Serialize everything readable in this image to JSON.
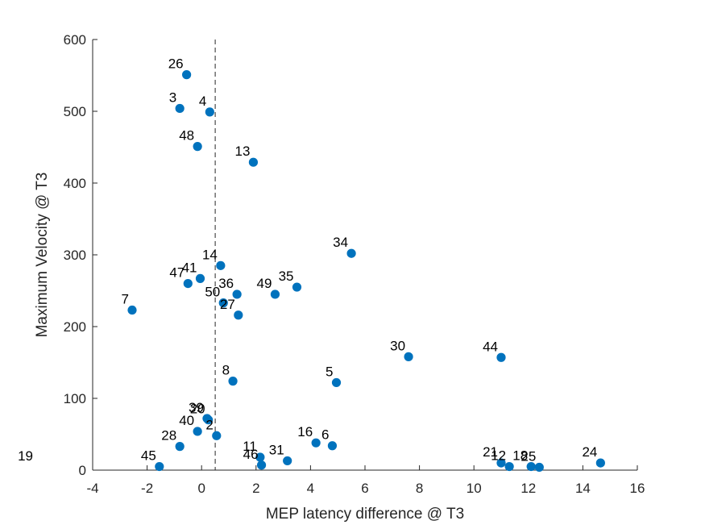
{
  "chart_data": {
    "type": "scatter",
    "xlabel": "MEP latency difference @ T3",
    "ylabel": "Maximum Velocity @ T3",
    "xlim": [
      -4,
      16
    ],
    "ylim": [
      0,
      600
    ],
    "xticks": [
      -4,
      -2,
      0,
      2,
      4,
      6,
      8,
      10,
      12,
      14,
      16
    ],
    "yticks": [
      0,
      100,
      200,
      300,
      400,
      500,
      600
    ],
    "reference_line_x": 0.5,
    "grid": false,
    "marker_color": "#0072BD",
    "points": [
      {
        "label": "26",
        "x": -0.55,
        "y": 551
      },
      {
        "label": "3",
        "x": -0.8,
        "y": 504
      },
      {
        "label": "4",
        "x": 0.3,
        "y": 499
      },
      {
        "label": "48",
        "x": -0.15,
        "y": 451
      },
      {
        "label": "13",
        "x": 1.9,
        "y": 429
      },
      {
        "label": "34",
        "x": 5.5,
        "y": 302
      },
      {
        "label": "14",
        "x": 0.7,
        "y": 285
      },
      {
        "label": "41",
        "x": -0.05,
        "y": 267
      },
      {
        "label": "47",
        "x": -0.5,
        "y": 260
      },
      {
        "label": "35",
        "x": 3.5,
        "y": 255
      },
      {
        "label": "36",
        "x": 1.3,
        "y": 245
      },
      {
        "label": "49",
        "x": 2.7,
        "y": 245
      },
      {
        "label": "50",
        "x": 0.8,
        "y": 233
      },
      {
        "label": "27",
        "x": 1.35,
        "y": 216
      },
      {
        "label": "7",
        "x": -2.55,
        "y": 223
      },
      {
        "label": "30",
        "x": 7.6,
        "y": 158
      },
      {
        "label": "44",
        "x": 11.0,
        "y": 157
      },
      {
        "label": "8",
        "x": 1.15,
        "y": 124
      },
      {
        "label": "5",
        "x": 4.95,
        "y": 122
      },
      {
        "label": "39",
        "x": 0.2,
        "y": 72
      },
      {
        "label": "20",
        "x": 0.25,
        "y": 70
      },
      {
        "label": "40",
        "x": -0.15,
        "y": 54
      },
      {
        "label": "2",
        "x": 0.55,
        "y": 48
      },
      {
        "label": "16",
        "x": 4.2,
        "y": 38
      },
      {
        "label": "6",
        "x": 4.8,
        "y": 34
      },
      {
        "label": "28",
        "x": -0.8,
        "y": 33
      },
      {
        "label": "11",
        "x": 2.15,
        "y": 18
      },
      {
        "label": "46",
        "x": 2.2,
        "y": 7
      },
      {
        "label": "31",
        "x": 3.15,
        "y": 13
      },
      {
        "label": "45",
        "x": -1.55,
        "y": 5
      },
      {
        "label": "21",
        "x": 11.0,
        "y": 10
      },
      {
        "label": "12",
        "x": 11.3,
        "y": 5
      },
      {
        "label": "18",
        "x": 12.1,
        "y": 5
      },
      {
        "label": "25",
        "x": 12.4,
        "y": 4
      },
      {
        "label": "24",
        "x": 14.65,
        "y": 10
      }
    ],
    "outside_labels": [
      {
        "label": "19"
      }
    ]
  }
}
